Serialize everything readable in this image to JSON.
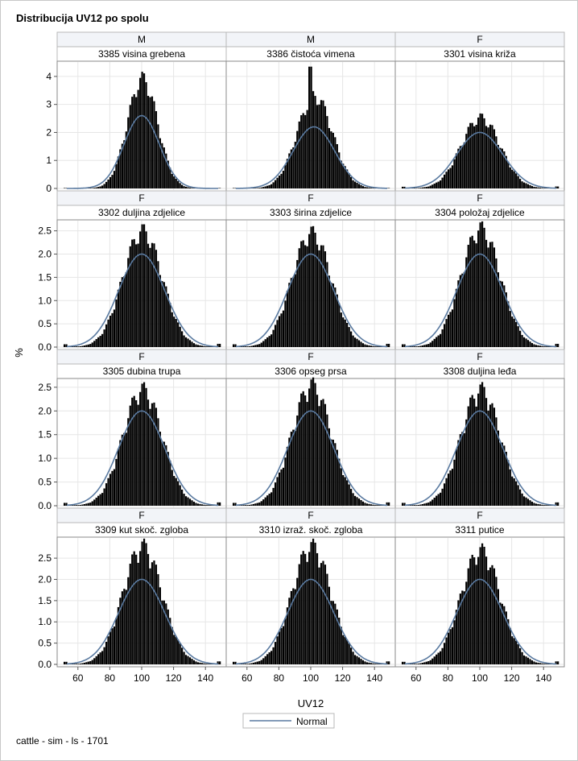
{
  "title": "Distribucija UV12 po spolu",
  "footer": "cattle - sim - ls - 1701",
  "chart_data": {
    "type": "histogram",
    "ylabel": "%",
    "xlabel": "UV12",
    "legend": {
      "entries": [
        "Normal"
      ],
      "placement": "bottom"
    },
    "xlim": [
      50,
      150
    ],
    "xticks": [
      60,
      80,
      100,
      120,
      140
    ],
    "grid": true,
    "normal_color": "#5a7aa0",
    "bar_color": "#000000",
    "rows": [
      {
        "ylim": [
          0,
          4.4
        ],
        "yticks": [
          0,
          1,
          2,
          3,
          4
        ],
        "ytick_labels": [
          "0",
          "1",
          "2",
          "3",
          "4"
        ]
      },
      {
        "ylim": [
          0,
          2.65
        ],
        "yticks": [
          0,
          0.5,
          1,
          1.5,
          2,
          2.5
        ],
        "ytick_labels": [
          "0.0",
          "0.5",
          "1.0",
          "1.5",
          "2.0",
          "2.5"
        ]
      },
      {
        "ylim": [
          0,
          2.6
        ],
        "yticks": [
          0,
          0.5,
          1,
          1.5,
          2,
          2.5
        ],
        "ytick_labels": [
          "0.0",
          "0.5",
          "1.0",
          "1.5",
          "2.0",
          "2.5"
        ]
      },
      {
        "ylim": [
          0,
          2.9
        ],
        "yticks": [
          0,
          0.5,
          1,
          1.5,
          2,
          2.5
        ],
        "ytick_labels": [
          "0.0",
          "0.5",
          "1.0",
          "1.5",
          "2.0",
          "2.5"
        ]
      }
    ],
    "panels": [
      {
        "sex": "M",
        "trait": "3385 visina grebena",
        "mean": 100,
        "sd": 15.3,
        "peak": 3.8,
        "normal_peak": 2.6,
        "spike_at": 100,
        "spike": 0
      },
      {
        "sex": "M",
        "trait": "3386 čistoća vimena",
        "mean": 102,
        "sd": 18,
        "peak": 3.2,
        "normal_peak": 2.2,
        "spike_at": 99,
        "spike": 4.35
      },
      {
        "sex": "F",
        "trait": "3301 visina križa",
        "mean": 100,
        "sd": 20,
        "peak": 2.45,
        "normal_peak": 2.0,
        "spike_at": 0,
        "spike": 0
      },
      {
        "sex": "F",
        "trait": "3302 duljina zdjelice",
        "mean": 100,
        "sd": 20,
        "peak": 2.42,
        "normal_peak": 2.0,
        "spike_at": 0,
        "spike": 0
      },
      {
        "sex": "F",
        "trait": "3303 širina zdjelice",
        "mean": 100,
        "sd": 20,
        "peak": 2.38,
        "normal_peak": 2.0,
        "spike_at": 0,
        "spike": 0
      },
      {
        "sex": "F",
        "trait": "3304 položaj zdjelice",
        "mean": 100,
        "sd": 20,
        "peak": 2.47,
        "normal_peak": 2.0,
        "spike_at": 0,
        "spike": 0
      },
      {
        "sex": "F",
        "trait": "3305 dubina trupa",
        "mean": 100,
        "sd": 20,
        "peak": 2.38,
        "normal_peak": 2.0,
        "spike_at": 0,
        "spike": 0
      },
      {
        "sex": "F",
        "trait": "3306 opseg prsa",
        "mean": 100,
        "sd": 20,
        "peak": 2.47,
        "normal_peak": 2.0,
        "spike_at": 0,
        "spike": 0
      },
      {
        "sex": "F",
        "trait": "3308 duljina leđa",
        "mean": 100,
        "sd": 20,
        "peak": 2.38,
        "normal_peak": 2.0,
        "spike_at": 0,
        "spike": 0
      },
      {
        "sex": "F",
        "trait": "3309 kut skoč. zgloba",
        "mean": 100,
        "sd": 20,
        "peak": 2.7,
        "normal_peak": 2.0,
        "spike_at": 0,
        "spike": 0
      },
      {
        "sex": "F",
        "trait": "3310 izraž. skoč. zgloba",
        "mean": 100,
        "sd": 20,
        "peak": 2.7,
        "normal_peak": 2.0,
        "spike_at": 0,
        "spike": 0
      },
      {
        "sex": "F",
        "trait": "3311 putice",
        "mean": 100,
        "sd": 20,
        "peak": 2.6,
        "normal_peak": 2.0,
        "spike_at": 0,
        "spike": 0
      }
    ]
  }
}
